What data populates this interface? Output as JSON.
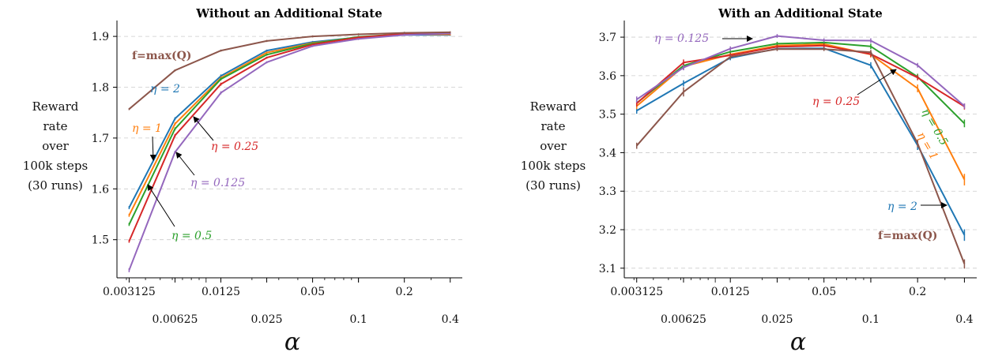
{
  "chart_data": [
    {
      "type": "line",
      "title": "Without an Additional State",
      "ylabel": [
        "Reward",
        "rate",
        "over",
        "100k steps",
        "(30 runs)"
      ],
      "xlabel": "α",
      "x_scale": "log",
      "x": [
        0.003125,
        0.00625,
        0.0125,
        0.025,
        0.05,
        0.1,
        0.2,
        0.4
      ],
      "x_tick_labels_row1": [
        "0.003125",
        "0.0125",
        "0.05",
        "0.2"
      ],
      "x_tick_labels_row2": [
        "0.00625",
        "0.025",
        "0.1",
        "0.4"
      ],
      "xlim": [
        0.0026,
        0.48
      ],
      "ylim": [
        1.425,
        1.925
      ],
      "y_ticks": [
        1.5,
        1.6,
        1.7,
        1.8,
        1.9
      ],
      "y_tick_labels": [
        "1.5",
        "1.6",
        "1.7",
        "1.8",
        "1.9"
      ],
      "grid": "horizontal dashed",
      "series": [
        {
          "name": "η = 2",
          "color": "#1f77b4",
          "values": [
            1.563,
            1.738,
            1.822,
            1.872,
            1.889,
            1.898,
            1.903,
            1.903
          ],
          "errors": [
            0.003,
            0.003,
            0.003,
            0.002,
            0.002,
            0.002,
            0.002,
            0.002
          ]
        },
        {
          "name": "η = 1",
          "color": "#ff7f0e",
          "values": [
            1.548,
            1.728,
            1.818,
            1.868,
            1.887,
            1.898,
            1.904,
            1.904
          ],
          "errors": [
            0.003,
            0.003,
            0.003,
            0.002,
            0.002,
            0.002,
            0.002,
            0.002
          ]
        },
        {
          "name": "η = 0.5",
          "color": "#2ca02c",
          "values": [
            1.53,
            1.718,
            1.816,
            1.864,
            1.886,
            1.899,
            1.905,
            1.906
          ],
          "errors": [
            0.003,
            0.003,
            0.003,
            0.002,
            0.002,
            0.002,
            0.002,
            0.002
          ]
        },
        {
          "name": "η = 0.25",
          "color": "#d62728",
          "values": [
            1.497,
            1.705,
            1.806,
            1.858,
            1.884,
            1.898,
            1.905,
            1.906
          ],
          "errors": [
            0.003,
            0.003,
            0.003,
            0.002,
            0.002,
            0.002,
            0.002,
            0.002
          ]
        },
        {
          "name": "η = 0.125",
          "color": "#9467bd",
          "values": [
            1.44,
            1.672,
            1.789,
            1.849,
            1.881,
            1.895,
            1.903,
            1.906
          ],
          "errors": [
            0.004,
            0.003,
            0.003,
            0.002,
            0.002,
            0.002,
            0.002,
            0.002
          ]
        },
        {
          "name": "f=max(Q)",
          "color": "#8c564b",
          "values": [
            1.757,
            1.833,
            1.872,
            1.891,
            1.9,
            1.904,
            1.907,
            1.908
          ],
          "errors": [
            0.002,
            0.002,
            0.002,
            0.002,
            0.002,
            0.002,
            0.002,
            0.002
          ]
        }
      ],
      "annotations": [
        {
          "text": "f=max(Q)",
          "color": "#8c564b",
          "bold": true
        },
        {
          "text": "η = 2",
          "color": "#1f77b4"
        },
        {
          "text": "η = 1",
          "color": "#ff7f0e"
        },
        {
          "text": "η = 0.25",
          "color": "#d62728"
        },
        {
          "text": "η = 0.125",
          "color": "#9467bd"
        },
        {
          "text": "η = 0.5",
          "color": "#2ca02c"
        }
      ]
    },
    {
      "type": "line",
      "title": "With an Additional State",
      "ylabel": [
        "Reward",
        "rate",
        "over",
        "100k steps",
        "(30 runs)"
      ],
      "xlabel": "α",
      "x_scale": "log",
      "x": [
        0.003125,
        0.00625,
        0.0125,
        0.025,
        0.05,
        0.1,
        0.2,
        0.4
      ],
      "x_tick_labels_row1": [
        "0.003125",
        "0.0125",
        "0.05",
        "0.2"
      ],
      "x_tick_labels_row2": [
        "0.00625",
        "0.025",
        "0.1",
        "0.4"
      ],
      "xlim": [
        0.0026,
        0.48
      ],
      "ylim": [
        3.075,
        3.735
      ],
      "y_ticks": [
        3.1,
        3.2,
        3.3,
        3.4,
        3.5,
        3.6,
        3.7
      ],
      "y_tick_labels": [
        "3.1",
        "3.2",
        "3.3",
        "3.4",
        "3.5",
        "3.6",
        "3.7"
      ],
      "grid": "horizontal dashed",
      "series": [
        {
          "name": "η = 2",
          "color": "#1f77b4",
          "values": [
            3.509,
            3.58,
            3.646,
            3.67,
            3.671,
            3.627,
            3.419,
            3.186
          ],
          "errors": [
            0.008,
            0.008,
            0.006,
            0.005,
            0.005,
            0.008,
            0.012,
            0.015
          ]
        },
        {
          "name": "η = 1",
          "color": "#ff7f0e",
          "values": [
            3.521,
            3.624,
            3.655,
            3.678,
            3.682,
            3.655,
            3.567,
            3.33
          ],
          "errors": [
            0.008,
            0.008,
            0.006,
            0.005,
            0.005,
            0.008,
            0.01,
            0.015
          ]
        },
        {
          "name": "η = 0.5",
          "color": "#2ca02c",
          "values": [
            3.529,
            3.626,
            3.662,
            3.683,
            3.686,
            3.676,
            3.597,
            3.476
          ],
          "errors": [
            0.008,
            0.008,
            0.006,
            0.005,
            0.005,
            0.007,
            0.008,
            0.01
          ]
        },
        {
          "name": "η = 0.25",
          "color": "#d62728",
          "values": [
            3.528,
            3.634,
            3.653,
            3.675,
            3.678,
            3.656,
            3.595,
            3.52
          ],
          "errors": [
            0.008,
            0.008,
            0.006,
            0.005,
            0.005,
            0.007,
            0.007,
            0.008
          ]
        },
        {
          "name": "η = 0.125",
          "color": "#9467bd",
          "values": [
            3.538,
            3.621,
            3.67,
            3.703,
            3.692,
            3.691,
            3.627,
            3.521
          ],
          "errors": [
            0.008,
            0.007,
            0.006,
            0.005,
            0.005,
            0.006,
            0.006,
            0.007
          ]
        },
        {
          "name": "f=max(Q)",
          "color": "#8c564b",
          "values": [
            3.418,
            3.558,
            3.649,
            3.669,
            3.669,
            3.661,
            3.424,
            3.111
          ],
          "errors": [
            0.008,
            0.012,
            0.006,
            0.005,
            0.005,
            0.006,
            0.01,
            0.012
          ]
        }
      ],
      "annotations": [
        {
          "text": "η = 0.125",
          "color": "#9467bd"
        },
        {
          "text": "η = 0.25",
          "color": "#d62728"
        },
        {
          "text": "η = 0.5",
          "color": "#2ca02c"
        },
        {
          "text": "η = 1",
          "color": "#ff7f0e"
        },
        {
          "text": "η = 2",
          "color": "#1f77b4"
        },
        {
          "text": "f=max(Q)",
          "color": "#8c564b",
          "bold": true
        }
      ]
    }
  ]
}
